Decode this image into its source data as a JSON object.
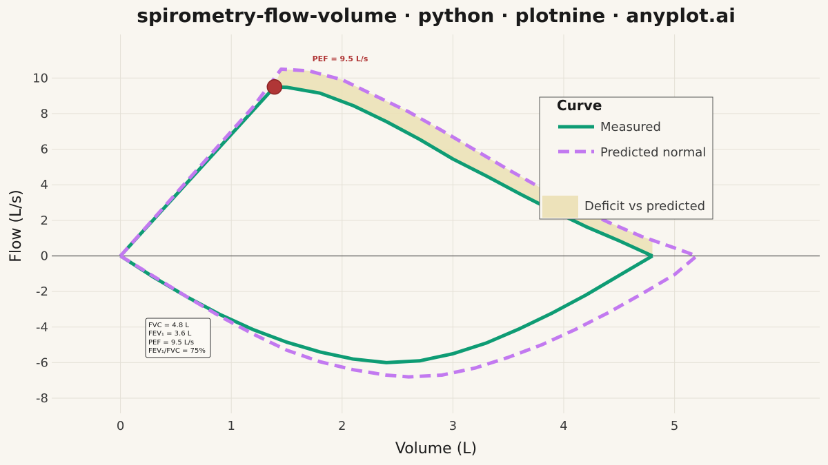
{
  "chart_data": {
    "type": "line",
    "title": "spirometry-flow-volume · python · plotnine · anyplot.ai",
    "xlabel": "Volume (L)",
    "ylabel": "Flow (L/s)",
    "xlim": [
      -0.62,
      6.31
    ],
    "ylim": [
      -8.85,
      12.45
    ],
    "x_ticks": [
      0,
      1,
      2,
      3,
      4,
      5
    ],
    "y_ticks": [
      10,
      8,
      6,
      4,
      2,
      0,
      -2,
      -4,
      -6,
      -8
    ],
    "grid": true,
    "legend": {
      "title": "Curve",
      "placement": "top-right",
      "entries": [
        "Measured",
        "Predicted normal",
        "Deficit vs predicted"
      ]
    },
    "series": [
      {
        "name": "Measured",
        "color": "#0e9c74",
        "style": "solid",
        "expiratory": [
          [
            0,
            0
          ],
          [
            0.3,
            2.05
          ],
          [
            0.6,
            4.1
          ],
          [
            0.9,
            6.15
          ],
          [
            1.2,
            8.2
          ],
          [
            1.39,
            9.5
          ],
          [
            1.5,
            9.48
          ],
          [
            1.8,
            9.15
          ],
          [
            2.1,
            8.45
          ],
          [
            2.4,
            7.55
          ],
          [
            2.7,
            6.55
          ],
          [
            3.0,
            5.45
          ],
          [
            3.3,
            4.5
          ],
          [
            3.6,
            3.5
          ],
          [
            3.9,
            2.55
          ],
          [
            4.2,
            1.65
          ],
          [
            4.5,
            0.85
          ],
          [
            4.8,
            0
          ]
        ],
        "inspiratory": [
          [
            0,
            0
          ],
          [
            0.3,
            -1.2
          ],
          [
            0.6,
            -2.3
          ],
          [
            0.9,
            -3.3
          ],
          [
            1.2,
            -4.15
          ],
          [
            1.5,
            -4.85
          ],
          [
            1.8,
            -5.4
          ],
          [
            2.1,
            -5.8
          ],
          [
            2.4,
            -6.0
          ],
          [
            2.7,
            -5.9
          ],
          [
            3.0,
            -5.5
          ],
          [
            3.3,
            -4.9
          ],
          [
            3.6,
            -4.1
          ],
          [
            3.9,
            -3.2
          ],
          [
            4.2,
            -2.2
          ],
          [
            4.5,
            -1.1
          ],
          [
            4.8,
            0
          ]
        ]
      },
      {
        "name": "Predicted normal",
        "color": "#c279f0",
        "style": "dashed",
        "expiratory": [
          [
            0,
            0
          ],
          [
            0.3,
            2.1
          ],
          [
            0.6,
            4.2
          ],
          [
            0.9,
            6.3
          ],
          [
            1.2,
            8.4
          ],
          [
            1.45,
            10.5
          ],
          [
            1.7,
            10.4
          ],
          [
            2.0,
            9.9
          ],
          [
            2.3,
            9.0
          ],
          [
            2.6,
            8.1
          ],
          [
            2.9,
            7.05
          ],
          [
            3.2,
            5.95
          ],
          [
            3.5,
            4.85
          ],
          [
            3.8,
            3.8
          ],
          [
            4.1,
            2.8
          ],
          [
            4.4,
            1.9
          ],
          [
            4.7,
            1.1
          ],
          [
            5.0,
            0.45
          ],
          [
            5.2,
            0
          ]
        ],
        "inspiratory": [
          [
            0,
            0
          ],
          [
            0.3,
            -1.15
          ],
          [
            0.6,
            -2.3
          ],
          [
            0.9,
            -3.4
          ],
          [
            1.2,
            -4.4
          ],
          [
            1.5,
            -5.3
          ],
          [
            1.8,
            -5.95
          ],
          [
            2.1,
            -6.4
          ],
          [
            2.4,
            -6.7
          ],
          [
            2.6,
            -6.8
          ],
          [
            2.9,
            -6.7
          ],
          [
            3.2,
            -6.3
          ],
          [
            3.5,
            -5.7
          ],
          [
            3.8,
            -5.0
          ],
          [
            4.1,
            -4.15
          ],
          [
            4.4,
            -3.2
          ],
          [
            4.7,
            -2.15
          ],
          [
            5.0,
            -1.05
          ],
          [
            5.2,
            0
          ]
        ]
      }
    ],
    "deficit_fill": {
      "name": "Deficit vs predicted",
      "color": "#ebe0b4"
    },
    "pef_point": {
      "x": 1.39,
      "y": 9.5,
      "label": "PEF = 9.5 L/s",
      "color": "#b03636"
    },
    "annotation_box": {
      "lines": [
        "FVC = 4.8 L",
        "FEV₁ = 3.6 L",
        "PEF = 9.5 L/s",
        "FEV₁/FVC = 75%"
      ]
    }
  }
}
